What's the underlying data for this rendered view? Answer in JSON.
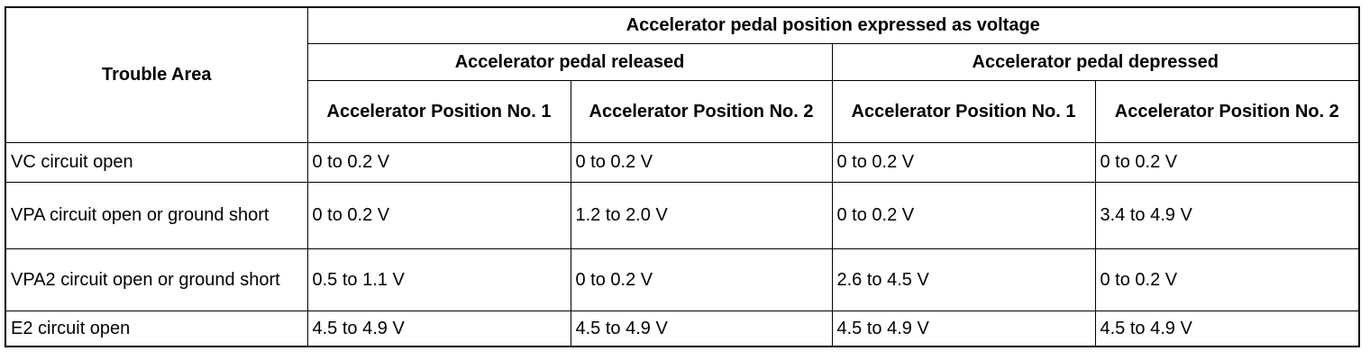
{
  "table": {
    "header": {
      "trouble_area": "Trouble Area",
      "group": "Accelerator pedal position expressed as voltage",
      "subgroups": [
        "Accelerator pedal released",
        "Accelerator pedal depressed"
      ],
      "columns": [
        "Accelerator Position No. 1",
        "Accelerator Position No. 2",
        "Accelerator Position No. 1",
        "Accelerator Position No. 2"
      ]
    },
    "rows": [
      [
        "VC circuit open",
        "0 to 0.2 V",
        "0 to 0.2 V",
        "0 to 0.2 V",
        "0 to 0.2 V"
      ],
      [
        "VPA circuit open or ground short",
        "0 to 0.2 V",
        "1.2 to 2.0 V",
        "0 to 0.2 V",
        "3.4 to 4.9 V"
      ],
      [
        "VPA2 circuit open or ground short",
        "0.5 to 1.1 V",
        "0 to 0.2 V",
        "2.6 to 4.5 V",
        "0 to 0.2 V"
      ],
      [
        "E2 circuit open",
        "4.5 to 4.9 V",
        "4.5 to 4.9 V",
        "4.5 to 4.9 V",
        "4.5 to 4.9 V"
      ]
    ]
  }
}
